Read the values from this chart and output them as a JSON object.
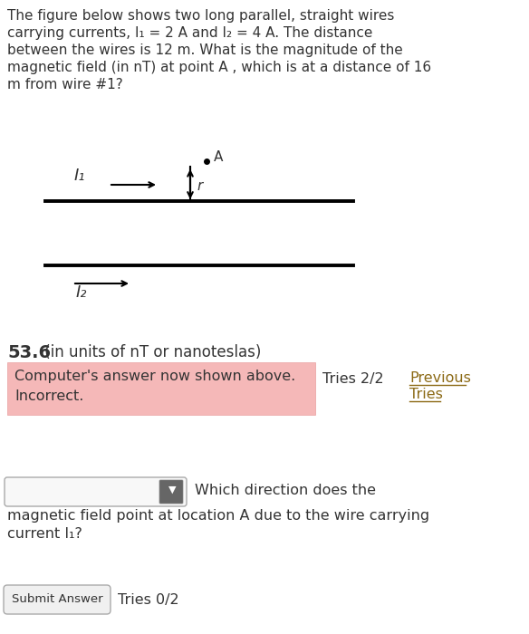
{
  "background_color": "#ffffff",
  "text_color": "#333333",
  "brown_text_color": "#7B3B00",
  "question_text_line1": "The figure below shows two long parallel, straight wires",
  "question_text_line2": "carrying currents, I₁ = 2 A and I₂ = 4 A. The distance",
  "question_text_line3": "between the wires is 12 m. What is the magnitude of the",
  "question_text_line4": "magnetic field (in nT) at point A , which is at a distance of 16",
  "question_text_line5": "m from wire #1?",
  "answer_bold": "53.6",
  "answer_suffix": " (in units of nT or nanoteslas)",
  "incorrect_box_text_line1": "Computer's answer now shown above.",
  "incorrect_box_text_line2": "Incorrect.",
  "incorrect_box_color": "#f5b8b8",
  "incorrect_box_edge_color": "#e8a0a0",
  "tries_text": "Tries 2/2",
  "previous_text": "Previous",
  "tries_link_text": "Tries",
  "previous_tries_color": "#8B6914",
  "dropdown_text": "Which direction does the",
  "question2_line1": "magnetic field point at location A due to the wire carrying",
  "question2_line2": "current I₁?",
  "submit_button_text": "Submit Answer",
  "tries2_text": "Tries 0/2",
  "wire1_label": "I₁",
  "wire2_label": "I₂",
  "point_label": "A",
  "r_label": "r"
}
